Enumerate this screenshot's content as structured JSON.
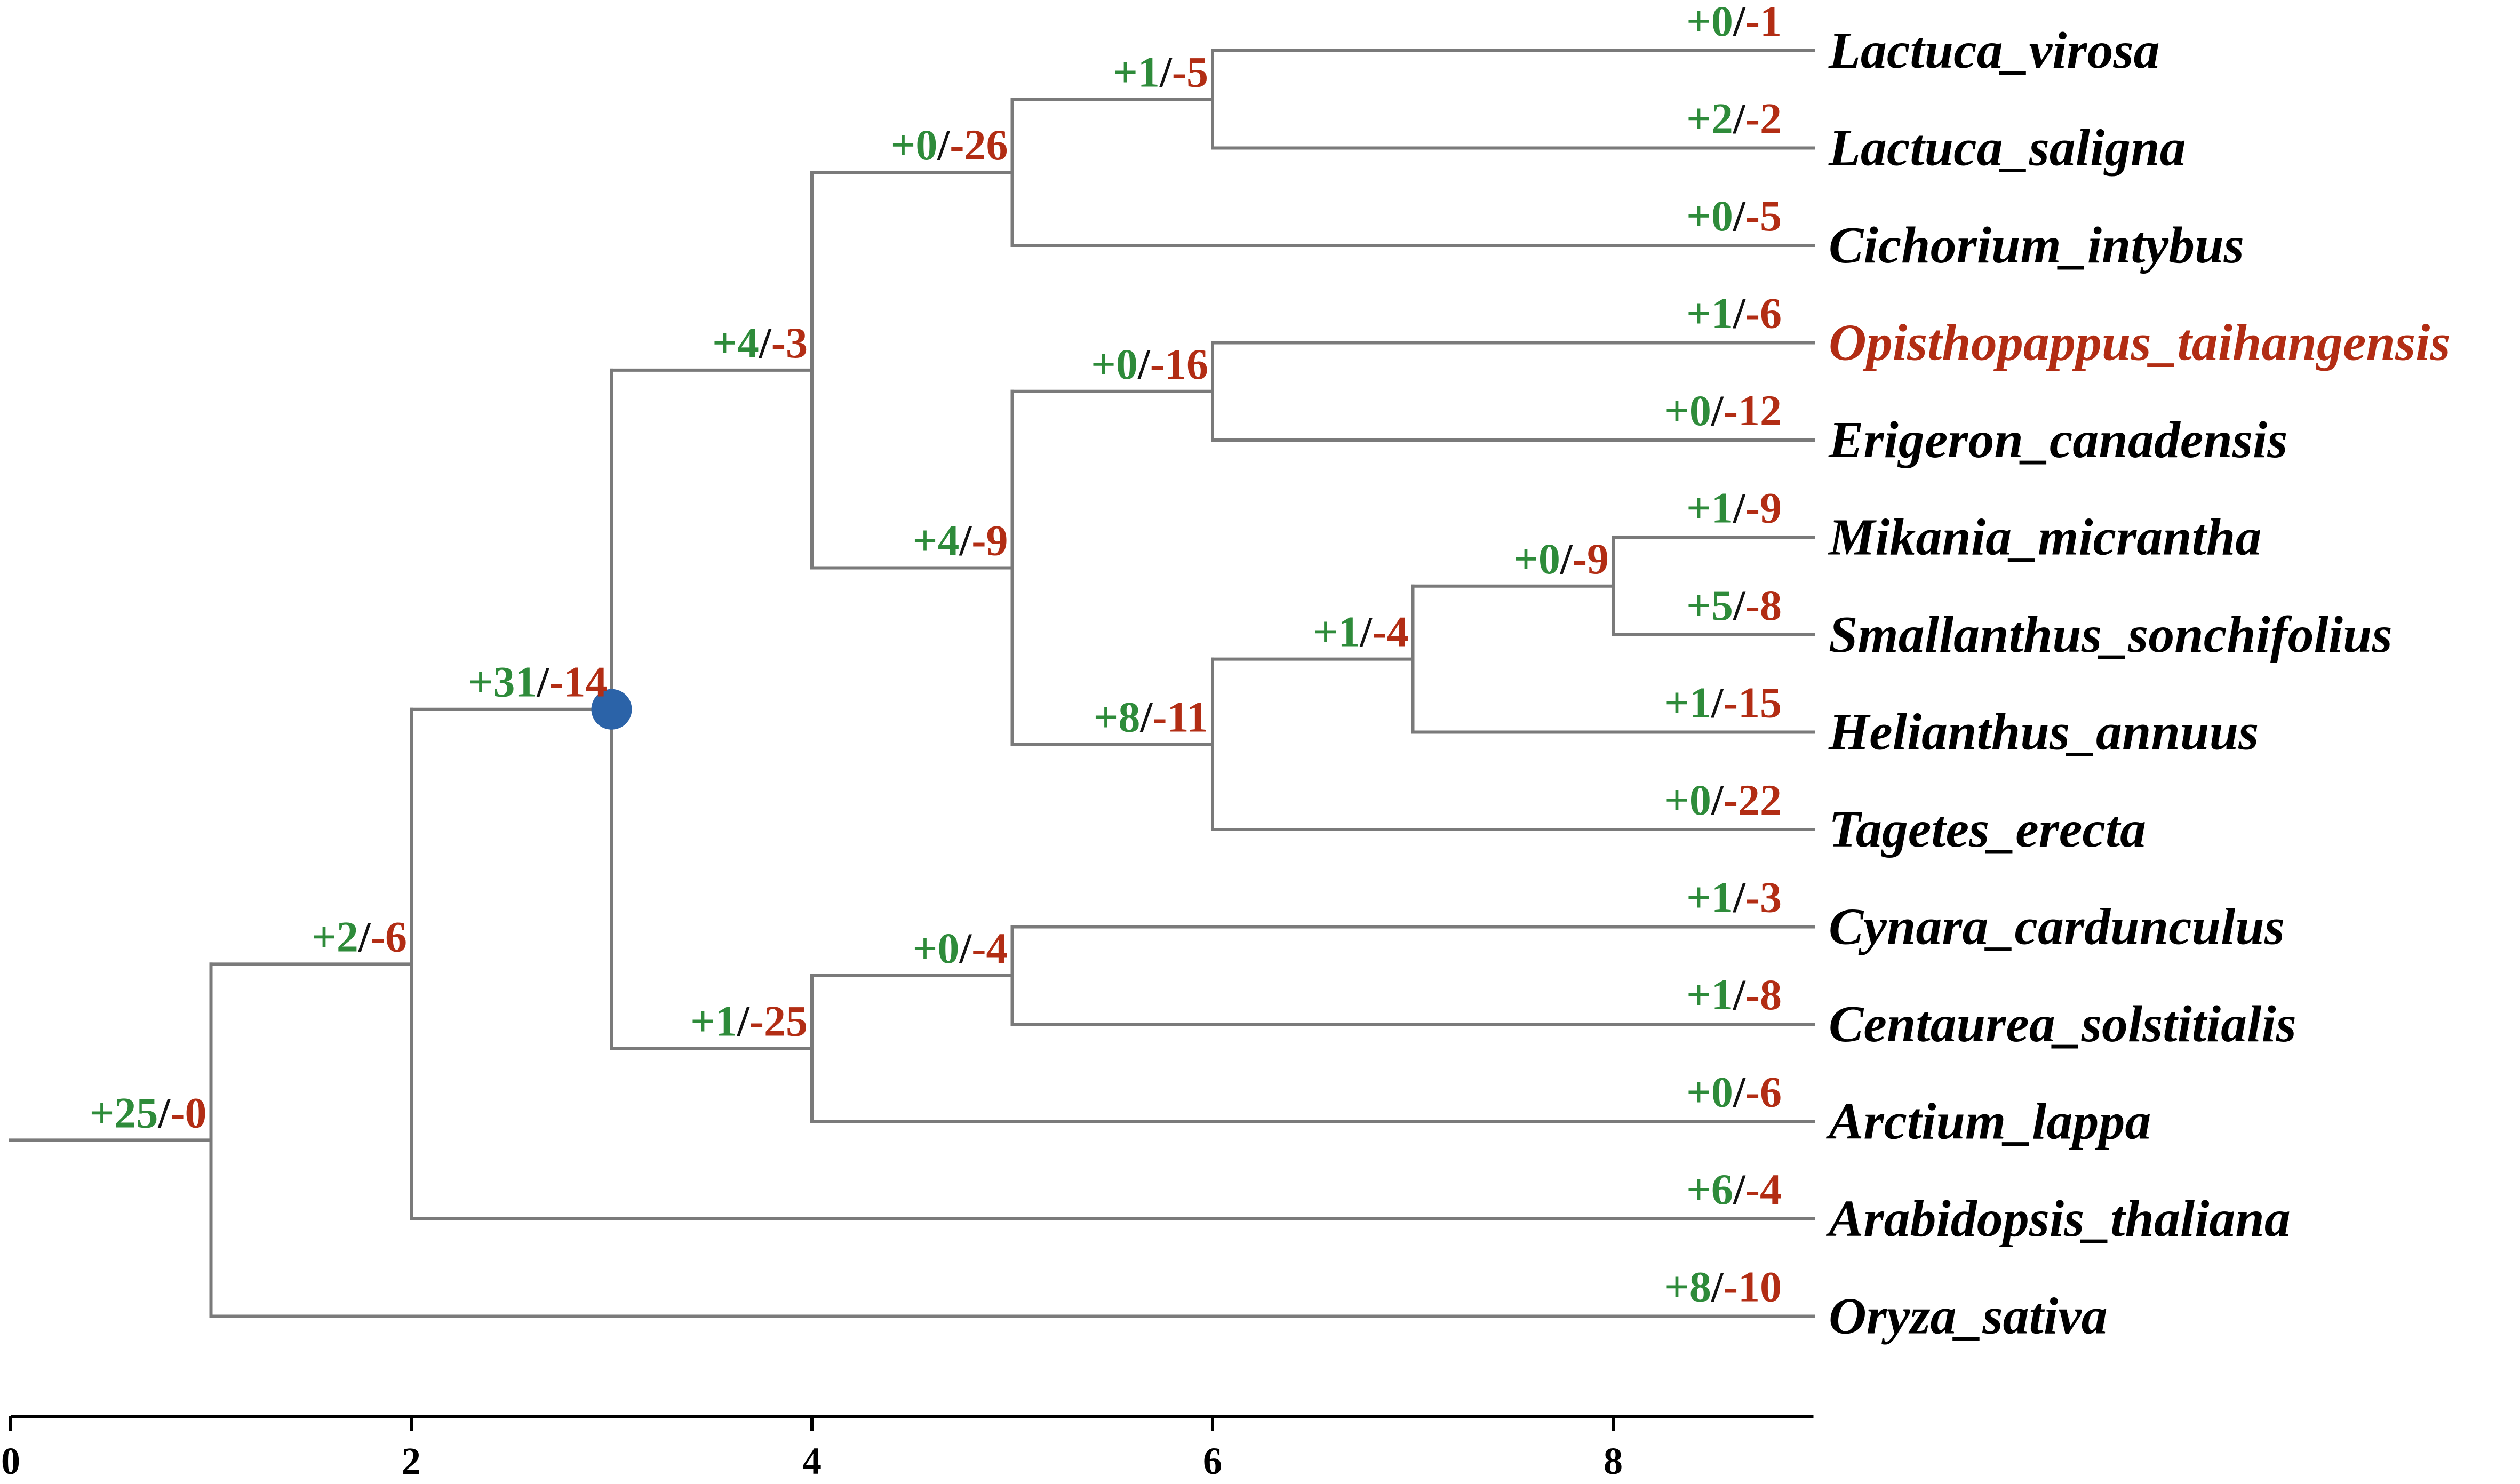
{
  "colors": {
    "gain": "#2e8b3a",
    "loss": "#b22d14",
    "taxon": "#000000",
    "highlight_taxon": "#b22d14",
    "marker": "#2b63a8",
    "branch": "#7a7a7a"
  },
  "axis": {
    "min": 0,
    "max": 9,
    "ticks": [
      {
        "value": 0,
        "label": "0"
      },
      {
        "value": 2,
        "label": "2"
      },
      {
        "value": 4,
        "label": "4"
      },
      {
        "value": 6,
        "label": "6"
      },
      {
        "value": 8,
        "label": "8"
      }
    ]
  },
  "taxa": [
    {
      "name": "Lactuca_virosa",
      "gain": "+0",
      "loss": "-1",
      "highlight": false
    },
    {
      "name": "Lactuca_saligna",
      "gain": "+2",
      "loss": "-2",
      "highlight": false
    },
    {
      "name": "Cichorium_intybus",
      "gain": "+0",
      "loss": "-5",
      "highlight": false
    },
    {
      "name": "Opisthopappus_taihangensis",
      "gain": "+1",
      "loss": "-6",
      "highlight": true
    },
    {
      "name": "Erigeron_canadensis",
      "gain": "+0",
      "loss": "-12",
      "highlight": false
    },
    {
      "name": "Mikania_micrantha",
      "gain": "+1",
      "loss": "-9",
      "highlight": false
    },
    {
      "name": "Smallanthus_sonchifolius",
      "gain": "+5",
      "loss": "-8",
      "highlight": false
    },
    {
      "name": "Helianthus_annuus",
      "gain": "+1",
      "loss": "-15",
      "highlight": false
    },
    {
      "name": "Tagetes_erecta",
      "gain": "+0",
      "loss": "-22",
      "highlight": false
    },
    {
      "name": "Cynara_cardunculus",
      "gain": "+1",
      "loss": "-3",
      "highlight": false
    },
    {
      "name": "Centaurea_solstitialis",
      "gain": "+1",
      "loss": "-8",
      "highlight": false
    },
    {
      "name": "Arctium_lappa",
      "gain": "+0",
      "loss": "-6",
      "highlight": false
    },
    {
      "name": "Arabidopsis_thaliana",
      "gain": "+6",
      "loss": "-4",
      "highlight": false
    },
    {
      "name": "Oryza_sativa",
      "gain": "+8",
      "loss": "-10",
      "highlight": false
    }
  ],
  "internal_nodes": [
    {
      "id": "root",
      "depth": 1,
      "gain": "+25",
      "loss": "-0",
      "children": [
        "n_a",
        "t13"
      ]
    },
    {
      "id": "n_a",
      "depth": 2,
      "gain": "+2",
      "loss": "-6",
      "children": [
        "n_b",
        "t12"
      ]
    },
    {
      "id": "n_b",
      "depth": 3,
      "gain": "+31",
      "loss": "-14",
      "marked": true,
      "children": [
        "n_c",
        "n_k"
      ]
    },
    {
      "id": "n_c",
      "depth": 4,
      "gain": "+4",
      "loss": "-3",
      "children": [
        "n_d",
        "n_f"
      ]
    },
    {
      "id": "n_d",
      "depth": 5,
      "gain": "+0",
      "loss": "-26",
      "children": [
        "n_e",
        "t2"
      ]
    },
    {
      "id": "n_e",
      "depth": 6,
      "gain": "+1",
      "loss": "-5",
      "children": [
        "t0",
        "t1"
      ]
    },
    {
      "id": "n_f",
      "depth": 5,
      "gain": "+4",
      "loss": "-9",
      "children": [
        "n_g",
        "n_h"
      ]
    },
    {
      "id": "n_g",
      "depth": 6,
      "gain": "+0",
      "loss": "-16",
      "children": [
        "t3",
        "t4"
      ]
    },
    {
      "id": "n_h",
      "depth": 6,
      "gain": "+8",
      "loss": "-11",
      "children": [
        "n_i",
        "t8"
      ]
    },
    {
      "id": "n_i",
      "depth": 7,
      "gain": "+1",
      "loss": "-4",
      "children": [
        "n_j",
        "t7"
      ]
    },
    {
      "id": "n_j",
      "depth": 8,
      "gain": "+0",
      "loss": "-9",
      "children": [
        "t5",
        "t6"
      ]
    },
    {
      "id": "n_k",
      "depth": 4,
      "gain": "+1",
      "loss": "-25",
      "children": [
        "n_l",
        "t11"
      ]
    },
    {
      "id": "n_l",
      "depth": 5,
      "gain": "+0",
      "loss": "-4",
      "children": [
        "t9",
        "t10"
      ]
    }
  ]
}
